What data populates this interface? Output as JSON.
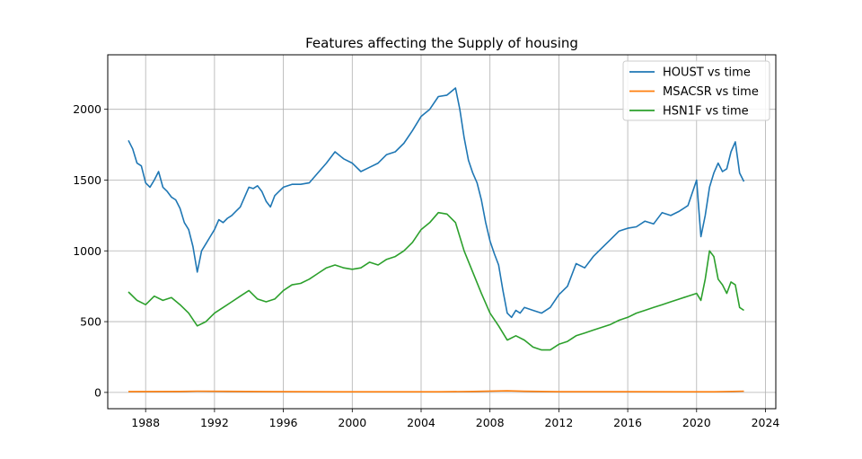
{
  "chart_data": {
    "type": "line",
    "title": "Features affecting the Supply of housing",
    "xlabel": "",
    "ylabel": "",
    "xlim": [
      1985.8,
      2024.6
    ],
    "ylim": [
      -115,
      2385
    ],
    "x_ticks": [
      1988,
      1992,
      1996,
      2000,
      2004,
      2008,
      2012,
      2016,
      2020,
      2024
    ],
    "y_ticks": [
      0,
      500,
      1000,
      1500,
      2000
    ],
    "grid": true,
    "legend_position": "top-right",
    "series": [
      {
        "name": "HOUST vs time",
        "color": "#1f77b4",
        "x": [
          1987.0,
          1987.25,
          1987.5,
          1987.75,
          1988.0,
          1988.25,
          1988.5,
          1988.75,
          1989.0,
          1989.25,
          1989.5,
          1989.75,
          1990.0,
          1990.25,
          1990.5,
          1990.75,
          1991.0,
          1991.25,
          1991.5,
          1991.75,
          1992.0,
          1992.25,
          1992.5,
          1992.75,
          1993.0,
          1993.25,
          1993.5,
          1993.75,
          1994.0,
          1994.25,
          1994.5,
          1994.75,
          1995.0,
          1995.25,
          1995.5,
          1995.75,
          1996.0,
          1996.5,
          1997.0,
          1997.5,
          1998.0,
          1998.5,
          1999.0,
          1999.5,
          2000.0,
          2000.5,
          2001.0,
          2001.5,
          2002.0,
          2002.5,
          2003.0,
          2003.5,
          2004.0,
          2004.5,
          2005.0,
          2005.5,
          2006.0,
          2006.25,
          2006.5,
          2006.75,
          2007.0,
          2007.25,
          2007.5,
          2007.75,
          2008.0,
          2008.25,
          2008.5,
          2008.75,
          2009.0,
          2009.25,
          2009.5,
          2009.75,
          2010.0,
          2010.5,
          2011.0,
          2011.5,
          2012.0,
          2012.5,
          2013.0,
          2013.5,
          2014.0,
          2014.5,
          2015.0,
          2015.5,
          2016.0,
          2016.5,
          2017.0,
          2017.5,
          2018.0,
          2018.5,
          2019.0,
          2019.5,
          2020.0,
          2020.25,
          2020.5,
          2020.75,
          2021.0,
          2021.25,
          2021.5,
          2021.75,
          2022.0,
          2022.25,
          2022.5,
          2022.75
        ],
        "y": [
          1780,
          1720,
          1620,
          1600,
          1480,
          1450,
          1500,
          1560,
          1450,
          1420,
          1380,
          1360,
          1300,
          1200,
          1150,
          1030,
          850,
          1000,
          1050,
          1100,
          1150,
          1220,
          1200,
          1230,
          1250,
          1280,
          1310,
          1380,
          1450,
          1440,
          1460,
          1420,
          1350,
          1310,
          1390,
          1420,
          1450,
          1470,
          1470,
          1480,
          1550,
          1620,
          1700,
          1650,
          1620,
          1560,
          1590,
          1620,
          1680,
          1700,
          1760,
          1850,
          1950,
          2000,
          2090,
          2100,
          2150,
          2000,
          1800,
          1640,
          1550,
          1480,
          1360,
          1200,
          1070,
          980,
          900,
          720,
          560,
          530,
          580,
          560,
          600,
          580,
          560,
          600,
          690,
          750,
          910,
          880,
          960,
          1020,
          1080,
          1140,
          1160,
          1170,
          1210,
          1190,
          1270,
          1250,
          1280,
          1320,
          1500,
          1100,
          1250,
          1450,
          1550,
          1620,
          1560,
          1580,
          1700,
          1770,
          1550,
          1490
        ]
      },
      {
        "name": "MSACSR vs time",
        "color": "#ff7f0e",
        "x": [
          1987.0,
          1990.0,
          1991.0,
          1995.0,
          2000.0,
          2005.0,
          2007.0,
          2009.0,
          2010.0,
          2012.0,
          2016.0,
          2020.0,
          2021.0,
          2022.75
        ],
        "y": [
          6,
          7,
          9,
          6,
          4,
          4,
          7,
          11,
          8,
          5,
          5,
          4,
          4,
          9
        ]
      },
      {
        "name": "HSN1F vs time",
        "color": "#2ca02c",
        "x": [
          1987.0,
          1987.5,
          1988.0,
          1988.5,
          1989.0,
          1989.5,
          1990.0,
          1990.5,
          1991.0,
          1991.5,
          1992.0,
          1992.5,
          1993.0,
          1993.5,
          1994.0,
          1994.5,
          1995.0,
          1995.5,
          1996.0,
          1996.5,
          1997.0,
          1997.5,
          1998.0,
          1998.5,
          1999.0,
          1999.5,
          2000.0,
          2000.5,
          2001.0,
          2001.5,
          2002.0,
          2002.5,
          2003.0,
          2003.5,
          2004.0,
          2004.5,
          2005.0,
          2005.5,
          2006.0,
          2006.5,
          2007.0,
          2007.5,
          2008.0,
          2008.5,
          2009.0,
          2009.5,
          2010.0,
          2010.5,
          2011.0,
          2011.5,
          2012.0,
          2012.5,
          2013.0,
          2013.5,
          2014.0,
          2014.5,
          2015.0,
          2015.5,
          2016.0,
          2016.5,
          2017.0,
          2017.5,
          2018.0,
          2018.5,
          2019.0,
          2019.5,
          2020.0,
          2020.25,
          2020.5,
          2020.75,
          2021.0,
          2021.25,
          2021.5,
          2021.75,
          2022.0,
          2022.25,
          2022.5,
          2022.75
        ],
        "y": [
          710,
          650,
          620,
          680,
          650,
          670,
          620,
          560,
          470,
          500,
          560,
          600,
          640,
          680,
          720,
          660,
          640,
          660,
          720,
          760,
          770,
          800,
          840,
          880,
          900,
          880,
          870,
          880,
          920,
          900,
          940,
          960,
          1000,
          1060,
          1150,
          1200,
          1270,
          1260,
          1200,
          1000,
          850,
          700,
          560,
          470,
          370,
          400,
          370,
          320,
          300,
          300,
          340,
          360,
          400,
          420,
          440,
          460,
          480,
          510,
          530,
          560,
          580,
          600,
          620,
          640,
          660,
          680,
          700,
          650,
          800,
          1000,
          960,
          800,
          760,
          700,
          780,
          760,
          600,
          580
        ]
      }
    ]
  }
}
